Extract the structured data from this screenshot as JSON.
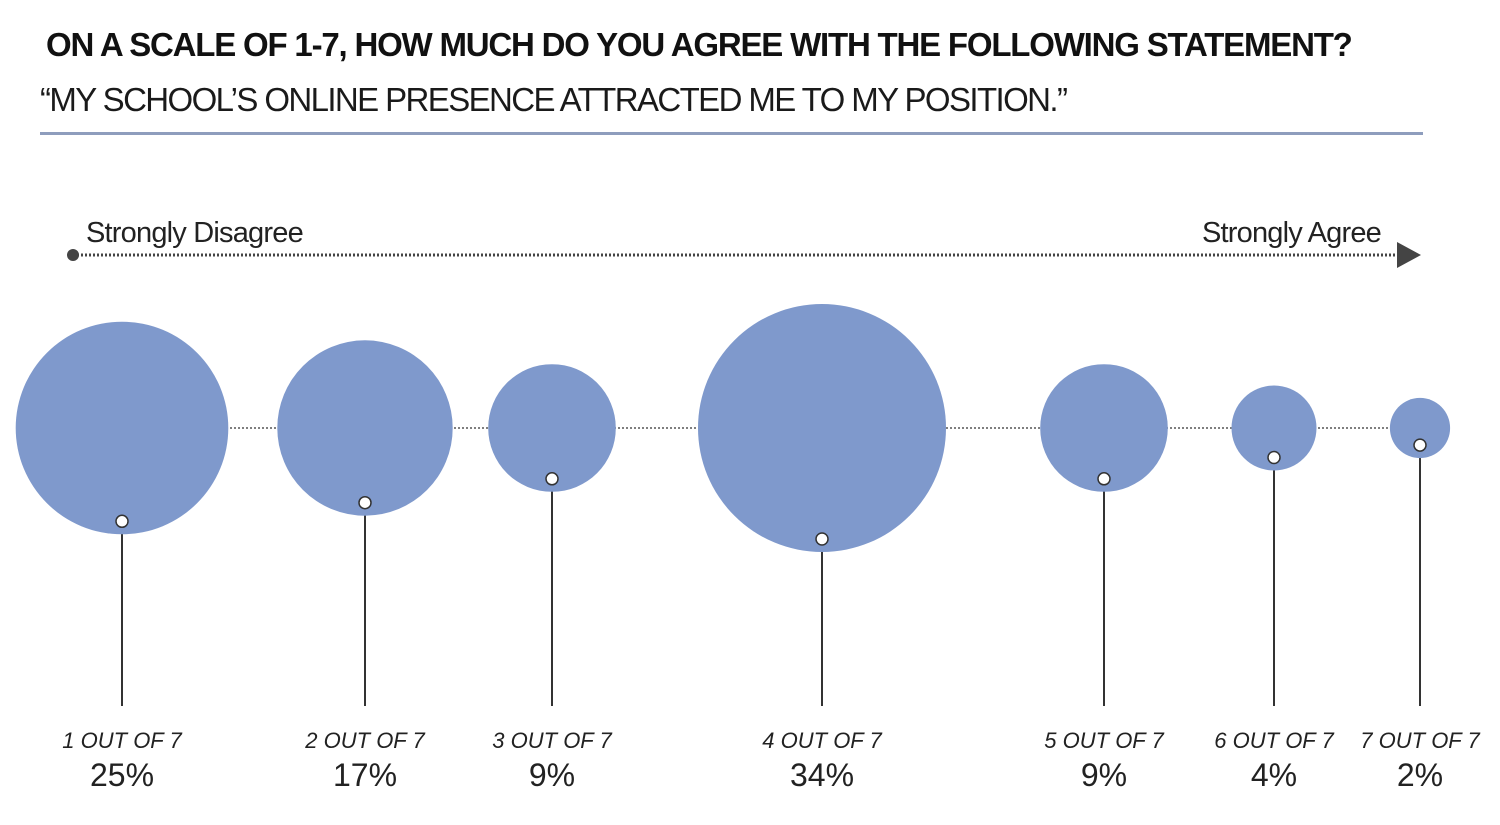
{
  "header": {
    "title": "ON A SCALE OF 1-7, HOW MUCH DO YOU AGREE WITH THE FOLLOWING STATEMENT?",
    "subtitle": "“MY SCHOOL’S ONLINE PRESENCE ATTRACTED ME TO MY POSITION.”"
  },
  "colors": {
    "bubble": "#7f99cc",
    "rule": "#8e9dbd",
    "line": "#333333"
  },
  "chart_data": {
    "type": "bubble",
    "scale_start_label": "Strongly Disagree",
    "scale_end_label": "Strongly Agree",
    "categories": [
      "1 OUT OF 7",
      "2 OUT OF 7",
      "3 OUT OF 7",
      "4 OUT OF 7",
      "5 OUT OF 7",
      "6 OUT OF 7",
      "7 OUT OF 7"
    ],
    "values": [
      25,
      17,
      9,
      34,
      9,
      4,
      2
    ],
    "value_labels": [
      "25%",
      "17%",
      "9%",
      "34%",
      "9%",
      "4%",
      "2%"
    ],
    "unit": "%"
  }
}
